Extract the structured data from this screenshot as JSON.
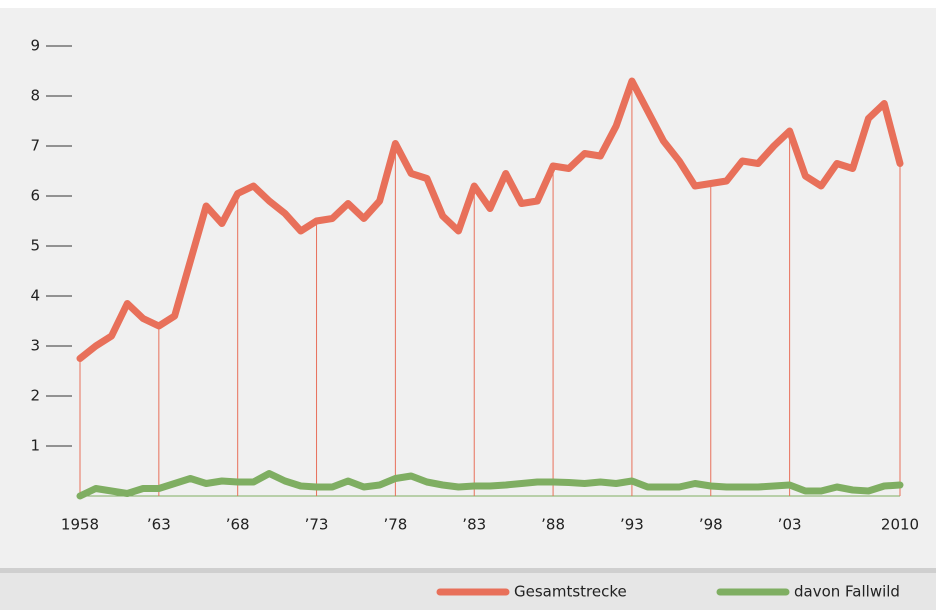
{
  "chart_data": {
    "type": "line",
    "x": [
      1958,
      1959,
      1960,
      1961,
      1962,
      1963,
      1964,
      1965,
      1966,
      1967,
      1968,
      1969,
      1970,
      1971,
      1972,
      1973,
      1974,
      1975,
      1976,
      1977,
      1978,
      1979,
      1980,
      1981,
      1982,
      1983,
      1984,
      1985,
      1986,
      1987,
      1988,
      1989,
      1990,
      1991,
      1992,
      1993,
      1994,
      1995,
      1996,
      1997,
      1998,
      1999,
      2000,
      2001,
      2002,
      2003,
      2004,
      2005,
      2006,
      2007,
      2008,
      2009,
      2010
    ],
    "series": [
      {
        "name": "Gesamtstrecke",
        "color": "#e8705a",
        "values": [
          2.75,
          3.0,
          3.2,
          3.85,
          3.55,
          3.4,
          3.6,
          4.7,
          5.8,
          5.45,
          6.05,
          6.2,
          5.9,
          5.65,
          5.3,
          5.5,
          5.55,
          5.85,
          5.55,
          5.9,
          7.05,
          6.45,
          6.35,
          5.6,
          5.3,
          6.2,
          5.75,
          6.45,
          5.85,
          5.9,
          6.6,
          6.55,
          6.85,
          6.8,
          7.4,
          8.3,
          7.7,
          7.1,
          6.7,
          6.2,
          6.25,
          6.3,
          6.7,
          6.65,
          7.0,
          7.3,
          6.4,
          6.2,
          6.65,
          6.55,
          7.55,
          7.85,
          6.65
        ]
      },
      {
        "name": "davon Fallwild",
        "color": "#7fae62",
        "values": [
          0,
          0.15,
          0.1,
          0.05,
          0.15,
          0.15,
          0.25,
          0.35,
          0.25,
          0.3,
          0.28,
          0.28,
          0.45,
          0.3,
          0.2,
          0.18,
          0.18,
          0.3,
          0.18,
          0.22,
          0.35,
          0.4,
          0.28,
          0.22,
          0.18,
          0.2,
          0.2,
          0.22,
          0.25,
          0.28,
          0.28,
          0.27,
          0.25,
          0.28,
          0.25,
          0.3,
          0.18,
          0.18,
          0.18,
          0.25,
          0.2,
          0.18,
          0.18,
          0.18,
          0.2,
          0.22,
          0.1,
          0.1,
          0.18,
          0.12,
          0.1,
          0.2,
          0.22
        ]
      }
    ],
    "xlim": [
      1958,
      2010
    ],
    "xticks": [
      1958,
      {
        "value": 1963,
        "label": "’63"
      },
      {
        "value": 1968,
        "label": "’68"
      },
      {
        "value": 1973,
        "label": "’73"
      },
      {
        "value": 1978,
        "label": "’78"
      },
      {
        "value": 1983,
        "label": "’83"
      },
      {
        "value": 1988,
        "label": "’88"
      },
      {
        "value": 1993,
        "label": "’93"
      },
      {
        "value": 1998,
        "label": "’98"
      },
      {
        "value": 2003,
        "label": "’03"
      },
      2010
    ],
    "ylim": [
      0,
      9
    ],
    "yticks": [
      1,
      2,
      3,
      4,
      5,
      6,
      7,
      8,
      9
    ]
  }
}
